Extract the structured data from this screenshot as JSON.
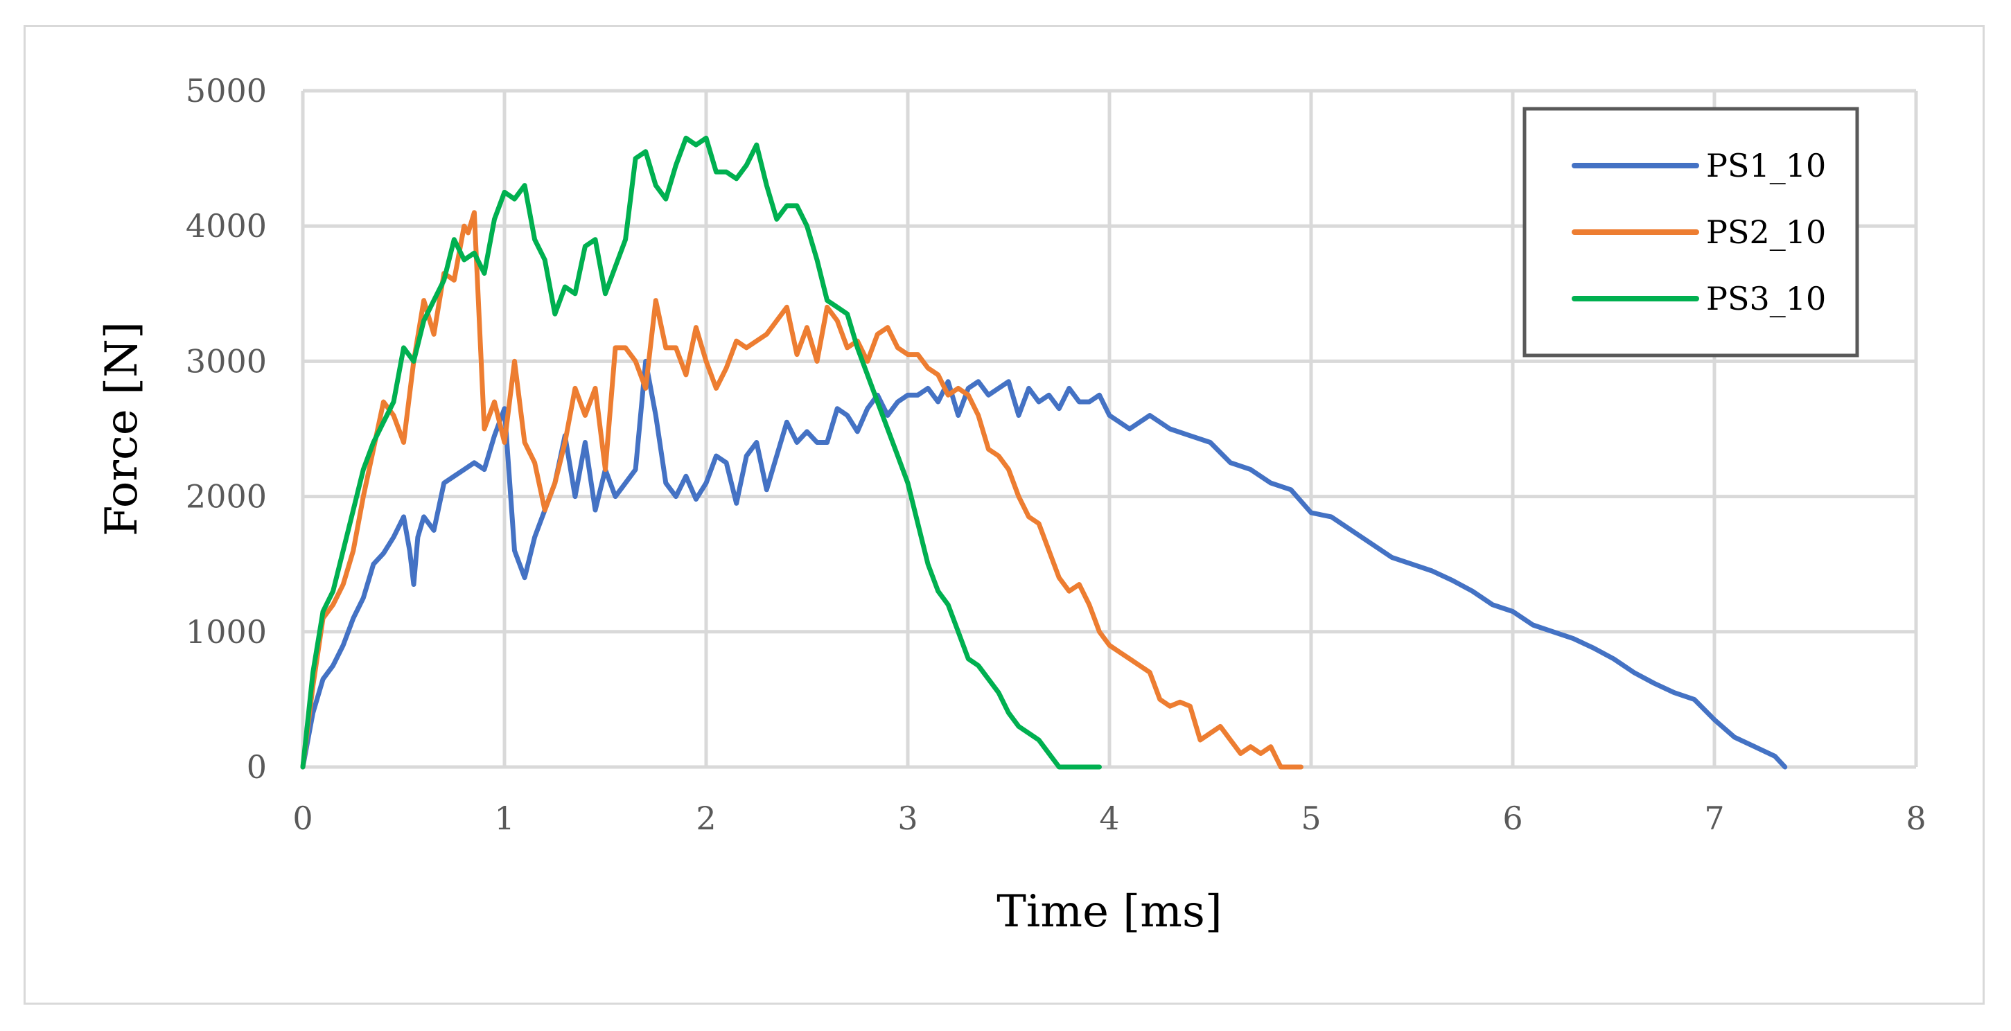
{
  "chart_data": {
    "type": "line",
    "xlabel": "Time [ms]",
    "ylabel": "Force [N]",
    "xlim": [
      0,
      8
    ],
    "ylim": [
      0,
      5000
    ],
    "xticks": [
      0,
      1,
      2,
      3,
      4,
      5,
      6,
      7,
      8
    ],
    "yticks": [
      0,
      1000,
      2000,
      3000,
      4000,
      5000
    ],
    "grid": true,
    "legend_position": "top-right",
    "series": [
      {
        "name": "PS1_10",
        "color": "#4472c4",
        "x": [
          0,
          0.05,
          0.1,
          0.15,
          0.2,
          0.25,
          0.3,
          0.35,
          0.4,
          0.45,
          0.5,
          0.53,
          0.55,
          0.57,
          0.6,
          0.65,
          0.7,
          0.75,
          0.8,
          0.85,
          0.9,
          0.95,
          1.0,
          1.05,
          1.1,
          1.15,
          1.2,
          1.25,
          1.3,
          1.35,
          1.4,
          1.45,
          1.5,
          1.55,
          1.6,
          1.65,
          1.7,
          1.75,
          1.8,
          1.85,
          1.9,
          1.95,
          2.0,
          2.05,
          2.1,
          2.15,
          2.2,
          2.25,
          2.3,
          2.35,
          2.4,
          2.45,
          2.5,
          2.55,
          2.6,
          2.65,
          2.7,
          2.75,
          2.8,
          2.85,
          2.9,
          2.95,
          3.0,
          3.05,
          3.1,
          3.15,
          3.2,
          3.25,
          3.3,
          3.35,
          3.4,
          3.45,
          3.5,
          3.55,
          3.6,
          3.65,
          3.7,
          3.75,
          3.8,
          3.85,
          3.9,
          3.95,
          4.0,
          4.1,
          4.2,
          4.3,
          4.4,
          4.5,
          4.6,
          4.7,
          4.8,
          4.9,
          5.0,
          5.1,
          5.2,
          5.3,
          5.4,
          5.5,
          5.6,
          5.7,
          5.8,
          5.9,
          6.0,
          6.1,
          6.2,
          6.3,
          6.4,
          6.5,
          6.6,
          6.7,
          6.8,
          6.9,
          7.0,
          7.1,
          7.2,
          7.3,
          7.35
        ],
        "values": [
          0,
          400,
          650,
          750,
          900,
          1100,
          1250,
          1500,
          1580,
          1700,
          1850,
          1600,
          1350,
          1700,
          1850,
          1750,
          2100,
          2150,
          2200,
          2250,
          2200,
          2450,
          2650,
          1600,
          1400,
          1700,
          1900,
          2100,
          2450,
          2000,
          2400,
          1900,
          2200,
          2000,
          2100,
          2200,
          3000,
          2600,
          2100,
          2000,
          2150,
          1980,
          2100,
          2300,
          2250,
          1950,
          2300,
          2400,
          2050,
          2300,
          2550,
          2400,
          2480,
          2400,
          2400,
          2650,
          2600,
          2480,
          2650,
          2750,
          2600,
          2700,
          2750,
          2750,
          2800,
          2700,
          2850,
          2600,
          2800,
          2850,
          2750,
          2800,
          2850,
          2600,
          2800,
          2700,
          2750,
          2650,
          2800,
          2700,
          2700,
          2750,
          2600,
          2500,
          2600,
          2500,
          2450,
          2400,
          2250,
          2200,
          2100,
          2050,
          1880,
          1850,
          1750,
          1650,
          1550,
          1500,
          1450,
          1380,
          1300,
          1200,
          1150,
          1050,
          1000,
          950,
          880,
          800,
          700,
          620,
          550,
          500,
          350,
          220,
          150,
          80,
          0
        ]
      },
      {
        "name": "PS2_10",
        "color": "#ed7d31",
        "x": [
          0,
          0.05,
          0.1,
          0.15,
          0.2,
          0.25,
          0.3,
          0.35,
          0.4,
          0.45,
          0.5,
          0.55,
          0.6,
          0.65,
          0.7,
          0.75,
          0.8,
          0.82,
          0.85,
          0.9,
          0.95,
          1.0,
          1.05,
          1.1,
          1.15,
          1.2,
          1.25,
          1.3,
          1.35,
          1.4,
          1.45,
          1.5,
          1.55,
          1.6,
          1.65,
          1.7,
          1.75,
          1.8,
          1.85,
          1.9,
          1.95,
          2.0,
          2.05,
          2.1,
          2.15,
          2.2,
          2.3,
          2.4,
          2.45,
          2.5,
          2.55,
          2.6,
          2.65,
          2.7,
          2.75,
          2.8,
          2.85,
          2.9,
          2.95,
          3.0,
          3.05,
          3.1,
          3.15,
          3.2,
          3.25,
          3.3,
          3.35,
          3.4,
          3.45,
          3.5,
          3.55,
          3.6,
          3.65,
          3.7,
          3.75,
          3.8,
          3.85,
          3.9,
          3.95,
          4.0,
          4.05,
          4.1,
          4.2,
          4.25,
          4.3,
          4.35,
          4.4,
          4.45,
          4.5,
          4.55,
          4.6,
          4.65,
          4.7,
          4.75,
          4.8,
          4.85,
          4.9,
          4.95
        ],
        "values": [
          0,
          600,
          1100,
          1200,
          1350,
          1600,
          2000,
          2350,
          2700,
          2600,
          2400,
          3000,
          3450,
          3200,
          3650,
          3600,
          4000,
          3950,
          4100,
          2500,
          2700,
          2400,
          3000,
          2400,
          2250,
          1900,
          2100,
          2400,
          2800,
          2600,
          2800,
          2200,
          3100,
          3100,
          3000,
          2800,
          3450,
          3100,
          3100,
          2900,
          3250,
          3000,
          2800,
          2950,
          3150,
          3100,
          3200,
          3400,
          3050,
          3250,
          3000,
          3400,
          3300,
          3100,
          3150,
          3000,
          3200,
          3250,
          3100,
          3050,
          3050,
          2950,
          2900,
          2750,
          2800,
          2750,
          2600,
          2350,
          2300,
          2200,
          2000,
          1850,
          1800,
          1600,
          1400,
          1300,
          1350,
          1200,
          1000,
          900,
          850,
          800,
          700,
          500,
          450,
          480,
          450,
          200,
          250,
          300,
          200,
          100,
          150,
          100,
          150,
          0,
          0,
          0
        ]
      },
      {
        "name": "PS3_10",
        "color": "#00b050",
        "x": [
          0,
          0.05,
          0.1,
          0.15,
          0.2,
          0.25,
          0.3,
          0.35,
          0.4,
          0.45,
          0.5,
          0.55,
          0.6,
          0.65,
          0.7,
          0.75,
          0.8,
          0.85,
          0.9,
          0.95,
          1.0,
          1.05,
          1.1,
          1.15,
          1.2,
          1.25,
          1.3,
          1.35,
          1.4,
          1.45,
          1.5,
          1.55,
          1.6,
          1.65,
          1.7,
          1.75,
          1.8,
          1.85,
          1.9,
          1.95,
          2.0,
          2.05,
          2.1,
          2.15,
          2.2,
          2.25,
          2.3,
          2.35,
          2.4,
          2.45,
          2.5,
          2.55,
          2.6,
          2.65,
          2.7,
          2.75,
          2.8,
          2.85,
          2.9,
          2.95,
          3.0,
          3.05,
          3.1,
          3.15,
          3.2,
          3.25,
          3.3,
          3.35,
          3.4,
          3.45,
          3.5,
          3.55,
          3.6,
          3.65,
          3.7,
          3.75,
          3.8,
          3.85,
          3.9,
          3.95
        ],
        "values": [
          0,
          700,
          1150,
          1300,
          1600,
          1900,
          2200,
          2400,
          2550,
          2700,
          3100,
          3000,
          3300,
          3450,
          3600,
          3900,
          3750,
          3800,
          3650,
          4050,
          4250,
          4200,
          4300,
          3900,
          3750,
          3350,
          3550,
          3500,
          3850,
          3900,
          3500,
          3700,
          3900,
          4500,
          4550,
          4300,
          4200,
          4450,
          4650,
          4600,
          4650,
          4400,
          4400,
          4350,
          4450,
          4600,
          4300,
          4050,
          4150,
          4150,
          4000,
          3750,
          3450,
          3400,
          3350,
          3100,
          2900,
          2700,
          2500,
          2300,
          2100,
          1800,
          1500,
          1300,
          1200,
          1000,
          800,
          750,
          650,
          550,
          400,
          300,
          250,
          200,
          100,
          0,
          0,
          0,
          0,
          0
        ]
      }
    ]
  }
}
